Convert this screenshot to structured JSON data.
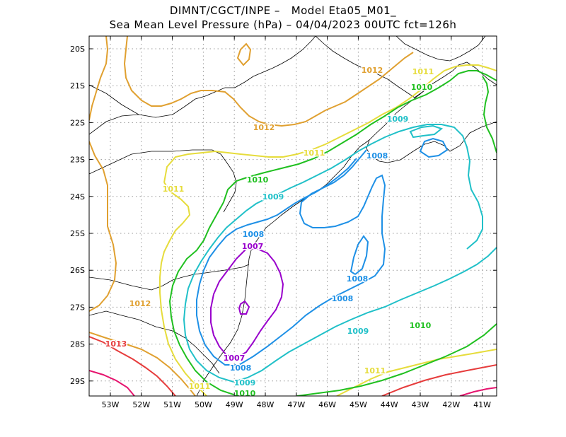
{
  "title": {
    "line1": "DIMNT/CGCT/INPE –   Model Eta05_M01_",
    "line2": "Sea Mean Level Pressure (hPa) – 04/04/2023 00UTC fct=126h"
  },
  "axes": {
    "lat_labels": [
      "20S",
      "21S",
      "22S",
      "23S",
      "24S",
      "25S",
      "26S",
      "27S",
      "28S",
      "29S"
    ],
    "lon_labels": [
      "53W",
      "52W",
      "51W",
      "50W",
      "49W",
      "48W",
      "47W",
      "46W",
      "45W",
      "44W",
      "43W",
      "42W",
      "41W"
    ],
    "lon_range": [
      -53.6,
      -40.5
    ],
    "lat_range": [
      -29.4,
      -19.8
    ],
    "grid": "dotted"
  },
  "contour_colors": {
    "1007": "#9900cc",
    "1008": "#1e90e6",
    "1009": "#20c0c8",
    "1010": "#20c020",
    "1011": "#e6dc3c",
    "1012": "#e0a030",
    "1013": "#e63c3c",
    "1014": "#e6146e"
  },
  "contour_labels": [
    {
      "text": "1012",
      "value": "1012"
    },
    {
      "text": "1011",
      "value": "1011"
    },
    {
      "text": "1010",
      "value": "1010"
    },
    {
      "text": "1012",
      "value": "1012"
    },
    {
      "text": "1009",
      "value": "1009"
    },
    {
      "text": "1011",
      "value": "1011"
    },
    {
      "text": "1008",
      "value": "1008"
    },
    {
      "text": "1010",
      "value": "1010"
    },
    {
      "text": "1011",
      "value": "1011"
    },
    {
      "text": "1009",
      "value": "1009"
    },
    {
      "text": "1008",
      "value": "1008"
    },
    {
      "text": "1007",
      "value": "1007"
    },
    {
      "text": "1008",
      "value": "1008"
    },
    {
      "text": "1008",
      "value": "1008"
    },
    {
      "text": "1012",
      "value": "1012"
    },
    {
      "text": "1009",
      "value": "1009"
    },
    {
      "text": "1010",
      "value": "1010"
    },
    {
      "text": "1013",
      "value": "1013"
    },
    {
      "text": "1007",
      "value": "1007"
    },
    {
      "text": "1008",
      "value": "1008"
    },
    {
      "text": "1011",
      "value": "1011"
    },
    {
      "text": "1009",
      "value": "1009"
    },
    {
      "text": "1011",
      "value": "1011"
    },
    {
      "text": "1010",
      "value": "1010"
    }
  ]
}
